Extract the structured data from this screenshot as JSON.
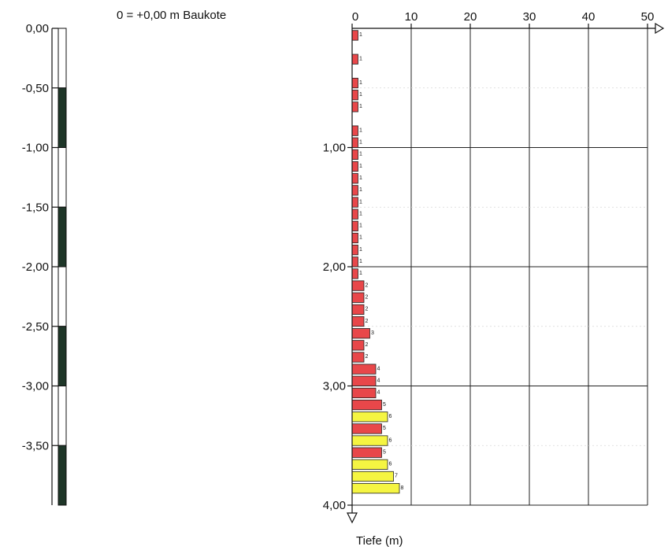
{
  "reference_note": "0 = +0,00 m Baukote",
  "chart_data": [
    {
      "type": "bar",
      "orientation": "vertical-column",
      "ylim": [
        0,
        -4.0
      ],
      "y_tick_labels": [
        "0,00",
        "-0,50",
        "-1,00",
        "-1,50",
        "-2,00",
        "-2,50",
        "-3,00",
        "-3,50"
      ],
      "y_tick_values": [
        0,
        -0.5,
        -1.0,
        -1.5,
        -2.0,
        -2.5,
        -3.0,
        -3.5
      ],
      "segments": [
        {
          "from": 0.0,
          "to": -0.5,
          "fill": "white"
        },
        {
          "from": -0.5,
          "to": -1.0,
          "fill": "dark"
        },
        {
          "from": -1.0,
          "to": -1.5,
          "fill": "white"
        },
        {
          "from": -1.5,
          "to": -2.0,
          "fill": "dark"
        },
        {
          "from": -2.0,
          "to": -2.5,
          "fill": "white"
        },
        {
          "from": -2.5,
          "to": -3.0,
          "fill": "dark"
        },
        {
          "from": -3.0,
          "to": -3.5,
          "fill": "white"
        },
        {
          "from": -3.5,
          "to": -4.0,
          "fill": "dark"
        }
      ],
      "colors": {
        "dark": "#1e3628",
        "white": "#ffffff"
      }
    },
    {
      "type": "bar",
      "orientation": "horizontal",
      "xlabel": "",
      "ylabel": "Tiefe (m)",
      "xlim": [
        0,
        50
      ],
      "ylim": [
        0,
        4.0
      ],
      "x_tick_labels": [
        "0",
        "10",
        "20",
        "30",
        "40",
        "50"
      ],
      "x_tick_values": [
        0,
        10,
        20,
        30,
        40,
        50
      ],
      "y_tick_labels": [
        "1,00",
        "2,00",
        "3,00",
        "4,00"
      ],
      "y_tick_values": [
        1.0,
        2.0,
        3.0,
        4.0
      ],
      "grid": true,
      "colors": {
        "red": "#e8474a",
        "yellow": "#f5f542"
      },
      "bins": [
        {
          "depth": 0.1,
          "value": 1,
          "color": "red"
        },
        {
          "depth": 0.3,
          "value": 1,
          "color": "red"
        },
        {
          "depth": 0.5,
          "value": 1,
          "color": "red"
        },
        {
          "depth": 0.6,
          "value": 1,
          "color": "red"
        },
        {
          "depth": 0.7,
          "value": 1,
          "color": "red"
        },
        {
          "depth": 0.9,
          "value": 1,
          "color": "red"
        },
        {
          "depth": 1.0,
          "value": 1,
          "color": "red"
        },
        {
          "depth": 1.1,
          "value": 1,
          "color": "red"
        },
        {
          "depth": 1.2,
          "value": 1,
          "color": "red"
        },
        {
          "depth": 1.3,
          "value": 1,
          "color": "red"
        },
        {
          "depth": 1.4,
          "value": 1,
          "color": "red"
        },
        {
          "depth": 1.5,
          "value": 1,
          "color": "red"
        },
        {
          "depth": 1.6,
          "value": 1,
          "color": "red"
        },
        {
          "depth": 1.7,
          "value": 1,
          "color": "red"
        },
        {
          "depth": 1.8,
          "value": 1,
          "color": "red"
        },
        {
          "depth": 1.9,
          "value": 1,
          "color": "red"
        },
        {
          "depth": 2.0,
          "value": 1,
          "color": "red"
        },
        {
          "depth": 2.1,
          "value": 1,
          "color": "red"
        },
        {
          "depth": 2.2,
          "value": 2,
          "color": "red"
        },
        {
          "depth": 2.3,
          "value": 2,
          "color": "red"
        },
        {
          "depth": 2.4,
          "value": 2,
          "color": "red"
        },
        {
          "depth": 2.5,
          "value": 2,
          "color": "red"
        },
        {
          "depth": 2.6,
          "value": 3,
          "color": "red"
        },
        {
          "depth": 2.7,
          "value": 2,
          "color": "red"
        },
        {
          "depth": 2.8,
          "value": 2,
          "color": "red"
        },
        {
          "depth": 2.9,
          "value": 4,
          "color": "red"
        },
        {
          "depth": 3.0,
          "value": 4,
          "color": "red"
        },
        {
          "depth": 3.1,
          "value": 4,
          "color": "red"
        },
        {
          "depth": 3.2,
          "value": 5,
          "color": "red"
        },
        {
          "depth": 3.3,
          "value": 6,
          "color": "yellow"
        },
        {
          "depth": 3.4,
          "value": 5,
          "color": "red"
        },
        {
          "depth": 3.5,
          "value": 6,
          "color": "yellow"
        },
        {
          "depth": 3.6,
          "value": 5,
          "color": "red"
        },
        {
          "depth": 3.7,
          "value": 6,
          "color": "yellow"
        },
        {
          "depth": 3.8,
          "value": 7,
          "color": "yellow"
        },
        {
          "depth": 3.9,
          "value": 8,
          "color": "yellow"
        }
      ]
    }
  ]
}
